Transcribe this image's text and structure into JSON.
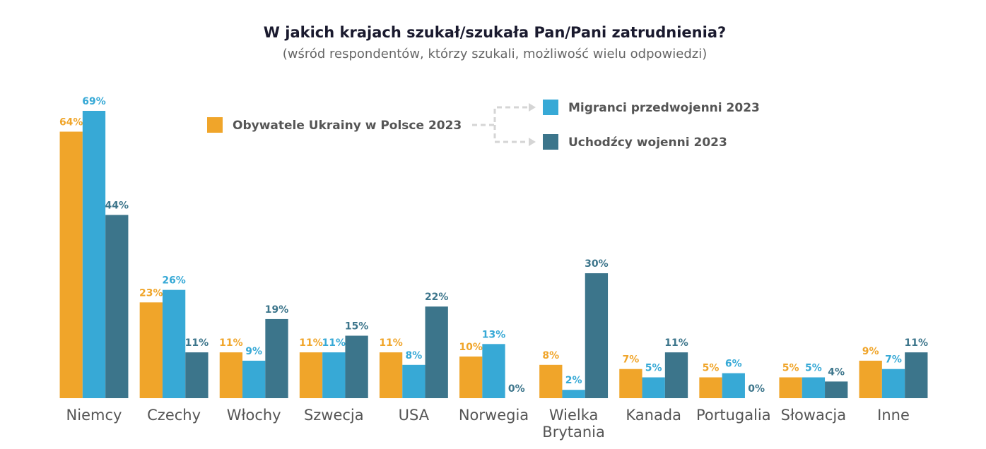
{
  "chart_data": {
    "type": "bar",
    "title": "W jakich krajach szukał/szukała Pan/Pani zatrudnienia?",
    "subtitle": "(wśród respondentów, którzy szukali, możliwość wielu odpowiedzi)",
    "categories": [
      "Niemcy",
      "Czechy",
      "Włochy",
      "Szwecja",
      "USA",
      "Norwegia",
      "Wielka Brytania",
      "Kanada",
      "Portugalia",
      "Słowacja",
      "Inne"
    ],
    "series": [
      {
        "name": "Obywatele Ukrainy w Polsce 2023",
        "color": "#f0a52a",
        "values": [
          64,
          23,
          11,
          11,
          11,
          10,
          8,
          7,
          5,
          5,
          9
        ],
        "value_labels": [
          "64%",
          "23%",
          "11%",
          "11%",
          "11%",
          "10%",
          "8%",
          "7%",
          "5%",
          "5%",
          "9%"
        ]
      },
      {
        "name": "Migranci przedwojenni 2023",
        "color": "#37a9d6",
        "values": [
          69,
          26,
          9,
          11,
          8,
          13,
          2,
          5,
          6,
          5,
          7
        ],
        "value_labels": [
          "69%",
          "26%",
          "9%",
          "11%",
          "8%",
          "13%",
          "2%",
          "5%",
          "6%",
          "5%",
          "7%"
        ]
      },
      {
        "name": "Uchodźcy wojenni 2023",
        "color": "#3c758b",
        "values": [
          44,
          11,
          19,
          15,
          22,
          0,
          30,
          11,
          0,
          4,
          11
        ],
        "value_labels": [
          "44%",
          "11%",
          "19%",
          "15%",
          "22%",
          "0%",
          "30%",
          "11%",
          "0%",
          "4%",
          "11%"
        ]
      }
    ]
  }
}
